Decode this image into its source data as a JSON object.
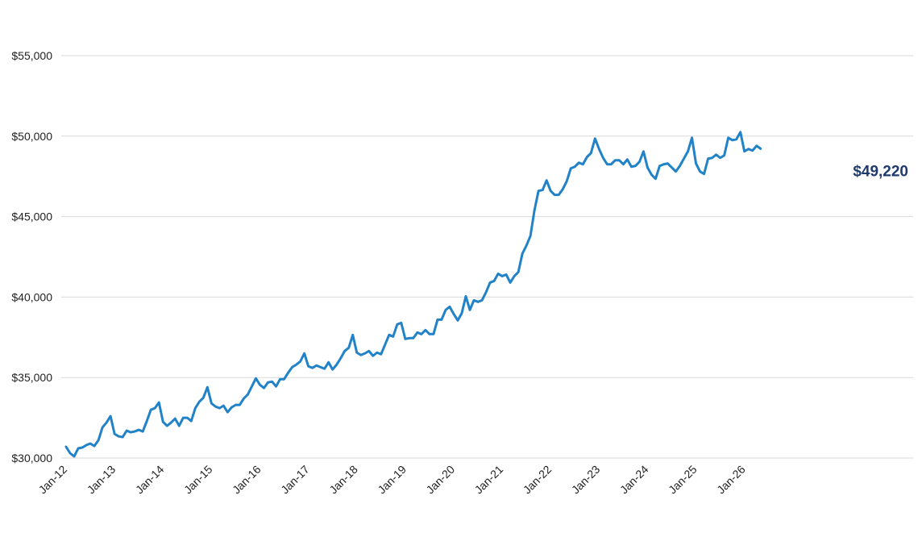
{
  "chart_data": {
    "type": "line",
    "title": "",
    "xlabel": "",
    "ylabel": "",
    "ylim": [
      30000,
      55000
    ],
    "y_ticks": [
      30000,
      35000,
      40000,
      45000,
      50000,
      55000
    ],
    "y_tick_labels": [
      "$30,000",
      "$35,000",
      "$40,000",
      "$45,000",
      "$50,000",
      "$55,000"
    ],
    "x_tick_labels": [
      "Jan-12",
      "Jan-13",
      "Jan-14",
      "Jan-15",
      "Jan-16",
      "Jan-17",
      "Jan-18",
      "Jan-19",
      "Jan-20",
      "Jan-21",
      "Jan-22",
      "Jan-23",
      "Jan-24",
      "Jan-25",
      "Jan-26"
    ],
    "x_start": "Jan-12",
    "grid": true,
    "line_color": "#2182c8",
    "callout": {
      "label": "$49,220",
      "color": "#1f3b6e"
    },
    "series": [
      {
        "values": [
          30700,
          30300,
          30100,
          30600,
          30650,
          30800,
          30900,
          30750,
          31100,
          31900,
          32200,
          32600,
          31500,
          31350,
          31300,
          31700,
          31600,
          31650,
          31750,
          31650,
          32300,
          33000,
          33100,
          33450,
          32250,
          32000,
          32200,
          32450,
          32000,
          32500,
          32500,
          32300,
          33100,
          33500,
          33750,
          34400,
          33400,
          33200,
          33100,
          33250,
          32850,
          33150,
          33300,
          33300,
          33700,
          33950,
          34450,
          34950,
          34550,
          34350,
          34700,
          34750,
          34450,
          34900,
          34900,
          35300,
          35650,
          35800,
          36000,
          36500,
          35700,
          35600,
          35750,
          35650,
          35550,
          35950,
          35500,
          35800,
          36200,
          36650,
          36850,
          37650,
          36550,
          36400,
          36500,
          36650,
          36350,
          36550,
          36450,
          37050,
          37650,
          37550,
          38300,
          38400,
          37400,
          37450,
          37450,
          37800,
          37700,
          37950,
          37700,
          37700,
          38600,
          38600,
          39200,
          39400,
          38950,
          38550,
          39000,
          40050,
          39200,
          39800,
          39700,
          39800,
          40300,
          40900,
          41000,
          41450,
          41300,
          41400,
          40900,
          41300,
          41550,
          42700,
          43200,
          43800,
          45400,
          46600,
          46650,
          47250,
          46600,
          46350,
          46350,
          46700,
          47200,
          48000,
          48100,
          48350,
          48250,
          48700,
          48950,
          49850,
          49200,
          48650,
          48250,
          48250,
          48500,
          48500,
          48250,
          48550,
          48100,
          48150,
          48400,
          49050,
          48050,
          47600,
          47350,
          48150,
          48250,
          48300,
          48050,
          47800,
          48150,
          48600,
          49050,
          49900,
          48300,
          47800,
          47650,
          48600,
          48650,
          48850,
          48650,
          48800,
          49900,
          49750,
          49800,
          50250,
          49050,
          49200,
          49100,
          49400,
          49220
        ]
      }
    ]
  }
}
